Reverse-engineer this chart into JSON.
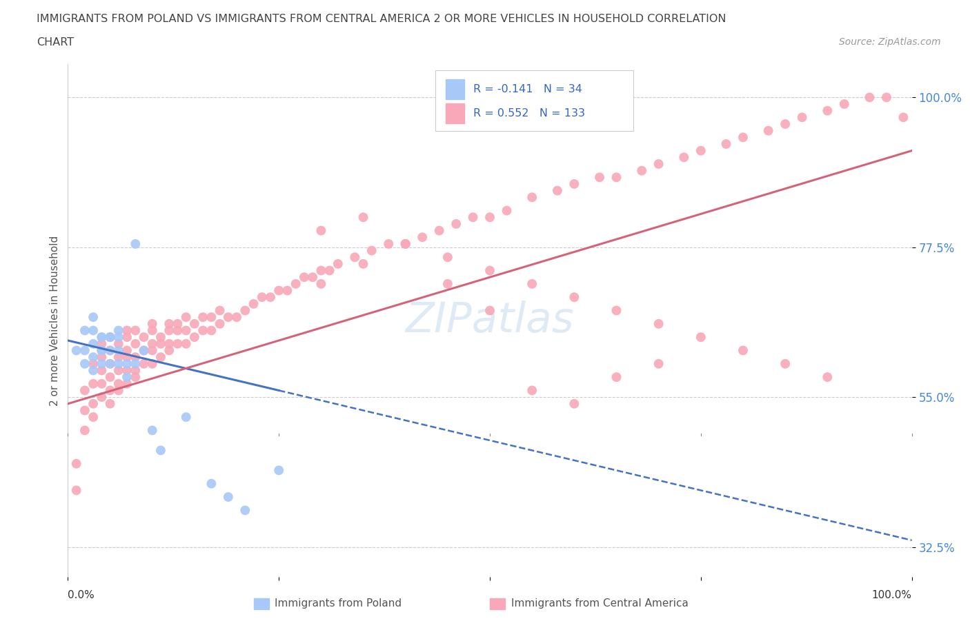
{
  "title_line1": "IMMIGRANTS FROM POLAND VS IMMIGRANTS FROM CENTRAL AMERICA 2 OR MORE VEHICLES IN HOUSEHOLD CORRELATION",
  "title_line2": "CHART",
  "source": "Source: ZipAtlas.com",
  "ylabel": "2 or more Vehicles in Household",
  "xlim": [
    0.0,
    1.0
  ],
  "ylim": [
    0.28,
    1.05
  ],
  "yticks": [
    0.325,
    0.55,
    0.775,
    1.0
  ],
  "ytick_labels": [
    "32.5%",
    "55.0%",
    "77.5%",
    "100.0%"
  ],
  "color_poland": "#a8c8f8",
  "color_central": "#f8a8b8",
  "trendline_poland_color": "#4472c4",
  "trendline_central_color": "#d4637a",
  "watermark": "ZIPatlas",
  "poland_x": [
    0.01,
    0.02,
    0.02,
    0.02,
    0.03,
    0.03,
    0.03,
    0.03,
    0.03,
    0.04,
    0.04,
    0.04,
    0.04,
    0.04,
    0.05,
    0.05,
    0.05,
    0.05,
    0.06,
    0.06,
    0.06,
    0.06,
    0.07,
    0.07,
    0.08,
    0.08,
    0.09,
    0.1,
    0.11,
    0.14,
    0.17,
    0.19,
    0.21,
    0.25
  ],
  "poland_y": [
    0.62,
    0.6,
    0.62,
    0.65,
    0.59,
    0.61,
    0.63,
    0.65,
    0.67,
    0.6,
    0.62,
    0.64,
    0.62,
    0.64,
    0.6,
    0.62,
    0.64,
    0.64,
    0.6,
    0.62,
    0.64,
    0.65,
    0.58,
    0.6,
    0.78,
    0.6,
    0.62,
    0.5,
    0.47,
    0.52,
    0.42,
    0.4,
    0.38,
    0.44
  ],
  "central_x": [
    0.01,
    0.01,
    0.02,
    0.02,
    0.02,
    0.03,
    0.03,
    0.03,
    0.03,
    0.04,
    0.04,
    0.04,
    0.04,
    0.04,
    0.05,
    0.05,
    0.05,
    0.05,
    0.05,
    0.05,
    0.06,
    0.06,
    0.06,
    0.06,
    0.06,
    0.07,
    0.07,
    0.07,
    0.07,
    0.07,
    0.07,
    0.08,
    0.08,
    0.08,
    0.08,
    0.08,
    0.09,
    0.09,
    0.09,
    0.1,
    0.1,
    0.1,
    0.1,
    0.1,
    0.11,
    0.11,
    0.11,
    0.12,
    0.12,
    0.12,
    0.12,
    0.13,
    0.13,
    0.13,
    0.14,
    0.14,
    0.14,
    0.15,
    0.15,
    0.16,
    0.16,
    0.17,
    0.17,
    0.18,
    0.18,
    0.19,
    0.2,
    0.21,
    0.22,
    0.23,
    0.24,
    0.25,
    0.26,
    0.27,
    0.28,
    0.29,
    0.3,
    0.31,
    0.32,
    0.34,
    0.36,
    0.38,
    0.4,
    0.42,
    0.44,
    0.46,
    0.48,
    0.5,
    0.52,
    0.55,
    0.58,
    0.6,
    0.63,
    0.65,
    0.68,
    0.7,
    0.73,
    0.75,
    0.78,
    0.8,
    0.83,
    0.85,
    0.87,
    0.9,
    0.92,
    0.95,
    0.97,
    0.99,
    0.3,
    0.35,
    0.4,
    0.45,
    0.5,
    0.55,
    0.6,
    0.65,
    0.7,
    0.3,
    0.35,
    0.4,
    0.45,
    0.5,
    0.55,
    0.6,
    0.65,
    0.7,
    0.75,
    0.8,
    0.85,
    0.9
  ],
  "central_y": [
    0.41,
    0.45,
    0.5,
    0.53,
    0.56,
    0.52,
    0.54,
    0.57,
    0.6,
    0.55,
    0.57,
    0.59,
    0.61,
    0.63,
    0.54,
    0.56,
    0.58,
    0.6,
    0.62,
    0.64,
    0.56,
    0.57,
    0.59,
    0.61,
    0.63,
    0.57,
    0.59,
    0.61,
    0.62,
    0.64,
    0.65,
    0.58,
    0.59,
    0.61,
    0.63,
    0.65,
    0.6,
    0.62,
    0.64,
    0.6,
    0.62,
    0.63,
    0.65,
    0.66,
    0.61,
    0.63,
    0.64,
    0.62,
    0.63,
    0.65,
    0.66,
    0.63,
    0.65,
    0.66,
    0.63,
    0.65,
    0.67,
    0.64,
    0.66,
    0.65,
    0.67,
    0.65,
    0.67,
    0.66,
    0.68,
    0.67,
    0.67,
    0.68,
    0.69,
    0.7,
    0.7,
    0.71,
    0.71,
    0.72,
    0.73,
    0.73,
    0.74,
    0.74,
    0.75,
    0.76,
    0.77,
    0.78,
    0.78,
    0.79,
    0.8,
    0.81,
    0.82,
    0.82,
    0.83,
    0.85,
    0.86,
    0.87,
    0.88,
    0.88,
    0.89,
    0.9,
    0.91,
    0.92,
    0.93,
    0.94,
    0.95,
    0.96,
    0.97,
    0.98,
    0.99,
    1.0,
    1.0,
    0.97,
    0.72,
    0.75,
    0.78,
    0.72,
    0.68,
    0.56,
    0.54,
    0.58,
    0.6,
    0.8,
    0.82,
    0.78,
    0.76,
    0.74,
    0.72,
    0.7,
    0.68,
    0.66,
    0.64,
    0.62,
    0.6,
    0.58
  ]
}
